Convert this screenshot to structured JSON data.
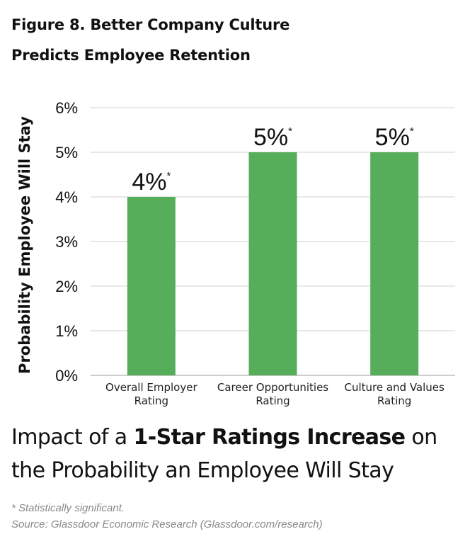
{
  "figure": {
    "title_line1": "Figure 8. Better Company Culture",
    "title_line2": "Predicts Employee Retention"
  },
  "chart_data": {
    "type": "bar",
    "categories": [
      [
        "Overall Employer",
        "Rating"
      ],
      [
        "Career Opportunities",
        "Rating"
      ],
      [
        "Culture and Values",
        "Rating"
      ]
    ],
    "values": [
      4,
      5,
      5
    ],
    "data_labels": [
      "4%",
      "5%",
      "5%"
    ],
    "data_label_marker": "*",
    "ylabel": "Probability Employee Will Stay",
    "ylim": [
      0,
      6
    ],
    "yticks": [
      "0%",
      "1%",
      "2%",
      "3%",
      "4%",
      "5%",
      "6%"
    ],
    "grid": true,
    "bar_color": "#56ad5a",
    "grid_color": "#d9d9d9"
  },
  "caption": {
    "before": "Impact of a ",
    "bold": "1-Star Ratings Increase",
    "after": " on the Probability an Employee Will Stay"
  },
  "notes": {
    "significance": "* Statistically significant.",
    "source": "Source: Glassdoor Economic Research (Glassdoor.com/research)"
  }
}
